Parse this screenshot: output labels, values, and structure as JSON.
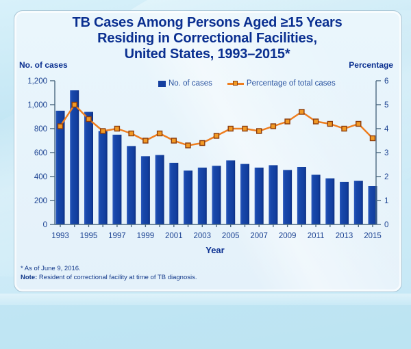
{
  "title_lines": [
    "TB Cases Among Persons Aged ≥15 Years",
    "Residing in Correctional Facilities,",
    "United States, 1993–2015*"
  ],
  "axis_titles": {
    "left": "No. of cases",
    "right": "Percentage",
    "x": "Year"
  },
  "legend": {
    "bars_label": "No. of cases",
    "line_label": "Percentage of total cases"
  },
  "footnotes": {
    "asterisk": "* As of June 9, 2016.",
    "note_label": "Note:",
    "note_text": "Resident of correctional facility at time of TB diagnosis."
  },
  "colors": {
    "title_text": "#0a2f90",
    "tick_text": "#1a4191",
    "bar": "#143f9f",
    "line": "#ee7e20",
    "marker_fill": "#f29a24",
    "marker_border": "#8c3d0e",
    "axis_line": "#4b6880",
    "panel_bg": "#e8f4fb",
    "outer_bg": "#c7e8f5"
  },
  "chart_data": {
    "type": "combo (bar + line, dual axis)",
    "title": "TB Cases Among Persons Aged ≥15 Years Residing in Correctional Facilities, United States, 1993–2015*",
    "categories": [
      1993,
      1994,
      1995,
      1996,
      1997,
      1998,
      1999,
      2000,
      2001,
      2002,
      2003,
      2004,
      2005,
      2006,
      2007,
      2008,
      2009,
      2010,
      2011,
      2012,
      2013,
      2014,
      2015
    ],
    "series": [
      {
        "name": "No. of cases",
        "chart": "bar",
        "axis": "left",
        "values": [
          950,
          1120,
          940,
          780,
          750,
          655,
          570,
          580,
          515,
          450,
          475,
          490,
          535,
          505,
          475,
          495,
          455,
          480,
          415,
          385,
          355,
          365,
          320
        ]
      },
      {
        "name": "Percentage of total cases",
        "chart": "line",
        "axis": "right",
        "values": [
          4.1,
          5.0,
          4.4,
          3.9,
          4.0,
          3.8,
          3.5,
          3.8,
          3.5,
          3.3,
          3.4,
          3.7,
          4.0,
          4.0,
          3.9,
          4.1,
          4.3,
          4.7,
          4.3,
          4.2,
          4.0,
          4.2,
          3.6
        ]
      }
    ],
    "left_axis": {
      "label": "No. of cases",
      "min": 0,
      "max": 1200,
      "tick_labels": [
        "0",
        "200",
        "400",
        "600",
        "800",
        "1,000",
        "1,200"
      ]
    },
    "right_axis": {
      "label": "Percentage",
      "min": 0,
      "max": 6,
      "tick_labels": [
        "0",
        "1",
        "2",
        "3",
        "4",
        "5",
        "6"
      ]
    },
    "x_tick_labels": [
      "1993",
      "1995",
      "1997",
      "1999",
      "2001",
      "2003",
      "2005",
      "2007",
      "2009",
      "2011",
      "2013",
      "2015"
    ],
    "xlabel": "Year",
    "grid": false,
    "legend_position": "top-center"
  }
}
